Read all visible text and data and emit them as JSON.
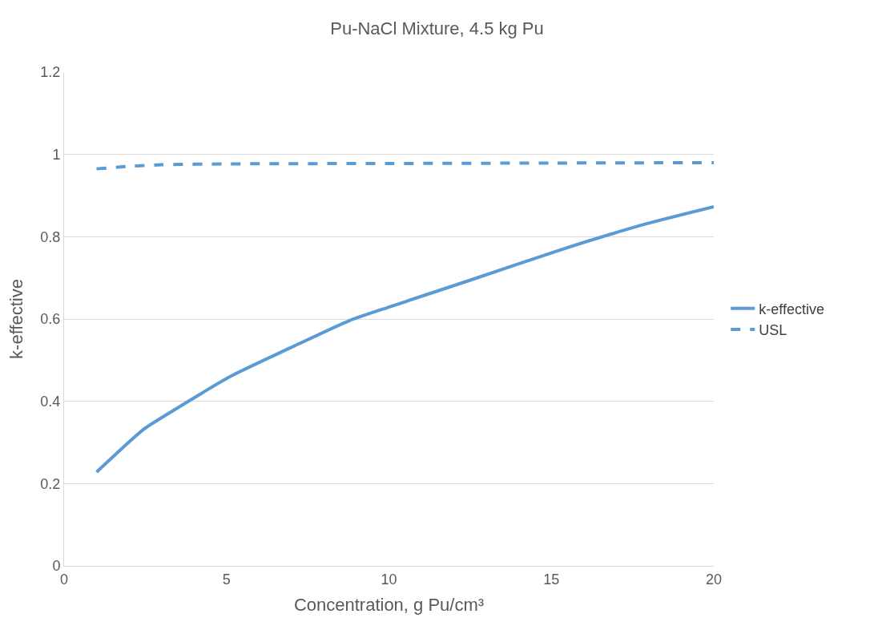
{
  "chart_data": {
    "type": "line",
    "title": "Pu-NaCl Mixture, 4.5 kg Pu",
    "xlabel": "Concentration, g Pu/cm³",
    "ylabel": "k-effective",
    "xlim": [
      0,
      20
    ],
    "xticks": [
      0,
      5,
      10,
      15,
      20
    ],
    "ylim": [
      0,
      1.2
    ],
    "yticks": [
      0,
      {
        "value": 0.2,
        "label": "0.2"
      },
      {
        "value": 0.4,
        "label": "0.4"
      },
      {
        "value": 0.6,
        "label": "0.6"
      },
      {
        "value": 0.8,
        "label": "0.8"
      },
      1,
      {
        "value": 1.2,
        "label": "1.2"
      }
    ],
    "grid": "y",
    "legend": "right",
    "marker": "none",
    "series": [
      {
        "name": "k-effective",
        "color": "#5b9bd5",
        "line_style": "solid",
        "x": [
          1,
          2.45,
          3.35,
          5.16,
          6.97,
          8.78,
          10.04,
          12.45,
          15.2,
          17.95,
          20
        ],
        "values": [
          0.228,
          0.332,
          0.377,
          0.462,
          0.53,
          0.596,
          0.63,
          0.693,
          0.766,
          0.832,
          0.873
        ]
      },
      {
        "name": "USL",
        "color": "#5b9bd5",
        "line_style": "dashed",
        "x": [
          1,
          2,
          3,
          5,
          10,
          15,
          20
        ],
        "values": [
          0.965,
          0.971,
          0.975,
          0.977,
          0.978,
          0.979,
          0.98
        ]
      }
    ]
  }
}
